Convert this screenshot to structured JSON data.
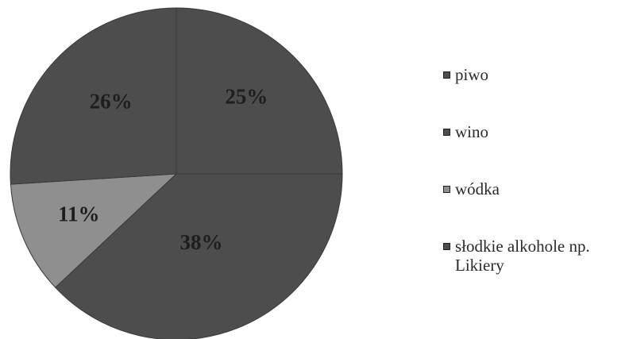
{
  "chart_data": {
    "type": "pie",
    "title": "",
    "slices": [
      {
        "label": "piwo",
        "value": 25,
        "display": "25%",
        "color": "#4d4d4d"
      },
      {
        "label": "słodkie alkohole np.\nLikiery",
        "value": 38,
        "display": "38%",
        "color": "#4d4d4d"
      },
      {
        "label": "wódka",
        "value": 11,
        "display": "11%",
        "color": "#8f8f8f"
      },
      {
        "label": "wino",
        "value": 26,
        "display": "26%",
        "color": "#4d4d4d"
      }
    ],
    "legend": [
      {
        "label": "piwo",
        "color": "#4d4d4d"
      },
      {
        "label": "wino",
        "color": "#4d4d4d"
      },
      {
        "label": "wódka",
        "color": "#8f8f8f"
      },
      {
        "label": "słodkie alkohole np.\nLikiery",
        "color": "#4d4d4d"
      }
    ],
    "legend_position": "right",
    "start_angle": "12 o'clock, clockwise"
  }
}
